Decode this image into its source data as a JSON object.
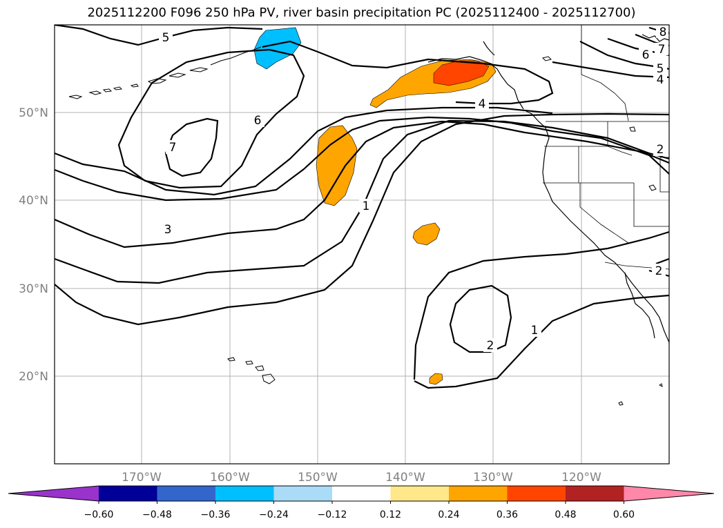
{
  "title": "2025112200 F096 250 hPa PV, river basin precipitation PC (2025112400 - 2025112700)",
  "lat_labels": [
    "50°N",
    "40°N",
    "30°N",
    "20°N"
  ],
  "lon_labels": [
    "170°W",
    "160°W",
    "150°W",
    "140°W",
    "130°W",
    "120°W"
  ],
  "contour_labels": [
    "5",
    "7",
    "6",
    "3",
    "1",
    "4",
    "2",
    "1",
    "2",
    "2",
    "6",
    "5",
    "4",
    "7",
    "8"
  ],
  "colorbar": {
    "colors": [
      "#9933cc",
      "#000099",
      "#3366cc",
      "#00bfff",
      "#aadcf8",
      "#ffffff",
      "#ffe88a",
      "#ffa500",
      "#ff4500",
      "#b22222",
      "#ff88aa"
    ],
    "tick_labels": [
      "−0.60",
      "−0.48",
      "−0.36",
      "−0.24",
      "−0.12",
      "0.12",
      "0.24",
      "0.36",
      "0.48",
      "0.60"
    ]
  },
  "fill_colors": {
    "orange": "#ffa500",
    "red": "#ff4500",
    "blue": "#00bfff"
  }
}
